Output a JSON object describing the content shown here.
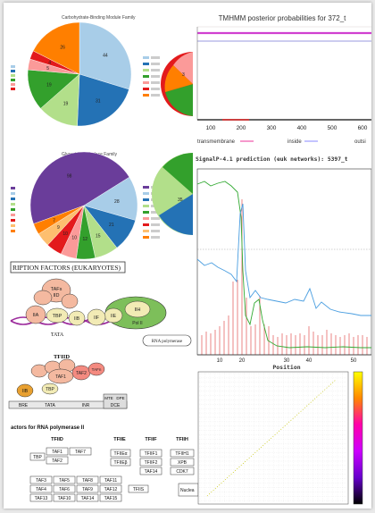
{
  "collage": {
    "pie1": {
      "title": "Carbohydrate-Binding Module Family",
      "slices": [
        {
          "label": "44",
          "value": 44,
          "color": "#a8cde8"
        },
        {
          "label": "31",
          "value": 31,
          "color": "#2472b5"
        },
        {
          "label": "19",
          "value": 19,
          "color": "#b2df8a"
        },
        {
          "label": "19",
          "value": 19,
          "color": "#33a02c"
        },
        {
          "label": "5",
          "value": 5,
          "color": "#fb9a99"
        },
        {
          "label": "4",
          "value": 4,
          "color": "#e31a1c"
        },
        {
          "label": "26",
          "value": 26,
          "color": "#ff7f00"
        }
      ]
    },
    "pie2": {
      "title": "Glycoside Hydrolase Family",
      "slices": [
        {
          "label": "98",
          "value": 98,
          "color": "#6a3d9a"
        },
        {
          "label": "28",
          "value": 28,
          "color": "#a8cde8"
        },
        {
          "label": "21",
          "value": 21,
          "color": "#2472b5"
        },
        {
          "label": "15",
          "value": 15,
          "color": "#b2df8a"
        },
        {
          "label": "12",
          "value": 12,
          "color": "#33a02c"
        },
        {
          "label": "10",
          "value": 10,
          "color": "#fb9a99"
        },
        {
          "label": "10",
          "value": 10,
          "color": "#e31a1c"
        },
        {
          "label": "9",
          "value": 9,
          "color": "#fdbf6f"
        },
        {
          "label": "7",
          "value": 7,
          "color": "#ff7f00"
        }
      ]
    },
    "tmhmm": {
      "title": "TMHMM posterior probabilities for 372_t",
      "ticks": [
        "100",
        "200",
        "300",
        "400",
        "500",
        "600"
      ],
      "legend": [
        "transmembrane",
        "inside",
        "outsi"
      ]
    },
    "signalp": {
      "title": "SignalP-4.1 prediction (euk networks): 5397_t",
      "xlabel": "Position",
      "ticks": [
        "10",
        "20",
        "30",
        "40",
        "50"
      ]
    },
    "tf": {
      "title": "RIPTION FACTORS (EUKARYOTES)",
      "labels": {
        "tafs": "TAFs",
        "iid": "IID",
        "iia": "IIA",
        "tbp": "TBP",
        "iib": "IIB",
        "iif": "IIF",
        "iie": "IIE",
        "iih": "IIH",
        "polii": "Pol II",
        "tata": "TATA",
        "rnapol": "RNA polymerase"
      },
      "tfiid": {
        "title": "TFIID",
        "taf1": "TAF1",
        "taf2": "TAF2",
        "tafn": "TAFn",
        "tbp": "TBP",
        "iib": "IIB",
        "bre": "BRE",
        "tata": "TATA",
        "inr": "INR",
        "mte": "MTE",
        "dpe": "DPE",
        "dce": "DCE"
      }
    },
    "factors": {
      "title": "actors for RNA polymerase II",
      "tfiid": "TFIID",
      "tfiie": "TFIIE",
      "tfiif": "TFIIF",
      "tfiih": "TFIIH",
      "tbp": "TBP",
      "taf1": "TAF1",
      "taf2": "TAF2",
      "taf7": "TAF7",
      "taf3": "TAF3",
      "taf4": "TAF4",
      "taf5": "TAF5",
      "taf6": "TAF6",
      "taf8": "TAF8",
      "taf9": "TAF9",
      "taf10": "TAF10",
      "taf11": "TAF11",
      "taf12": "TAF12",
      "taf13": "TAF13",
      "taf14": "TAF14",
      "taf15": "TAF15",
      "tfiie_a": "TFIIEα",
      "tfiie_b": "TFIIEβ",
      "tfiif1": "TFIIF1",
      "tfiif2": "TFIIF2",
      "taf14b": "TAF14",
      "tfiih1": "TFIIH1",
      "xpb": "XPB",
      "cdk7": "CDK7",
      "tfiis": "TFIIS",
      "nuclea": "Nuclea"
    }
  }
}
